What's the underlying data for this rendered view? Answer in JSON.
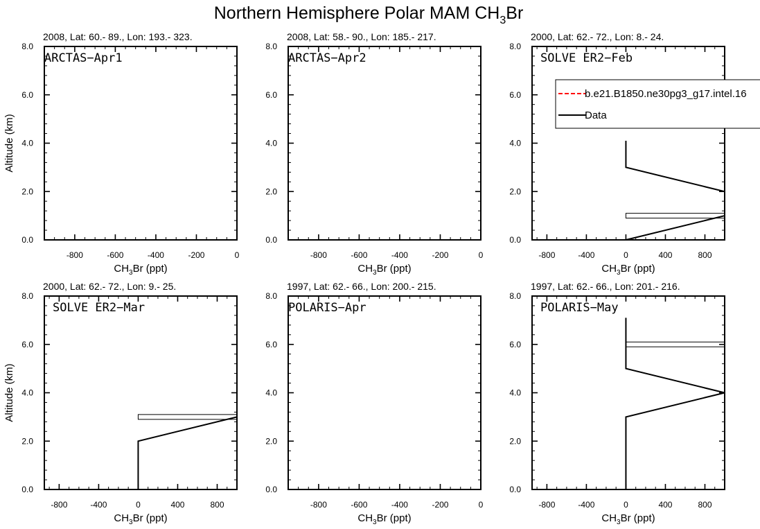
{
  "figure": {
    "title_main": "Northern Hemisphere Polar MAM CH",
    "title_sub": "3",
    "title_tail": "Br"
  },
  "legend": {
    "entries": [
      {
        "label": "b.e21.B1850.ne30pg3_g17.intel.16",
        "style": "dashed",
        "color": "#ff0000"
      },
      {
        "label": "Data",
        "style": "solid",
        "color": "#000000"
      }
    ]
  },
  "chart_data": [
    {
      "type": "line",
      "subtitle": "2008, Lat:  60.- 89., Lon: 193.- 323.",
      "label": "ARCTAS−Apr1",
      "xlabel_pre": "CH",
      "xlabel_sub": "3",
      "xlabel_post": "Br (ppt)",
      "ylabel": "Altitude (km)",
      "xlim": [
        -950,
        0
      ],
      "ylim": [
        0,
        8
      ],
      "xticks": [
        -800,
        -600,
        -400,
        -200,
        0
      ],
      "xticklabels": [
        "-800",
        "-600",
        "-400",
        "-200",
        "0"
      ],
      "yticks": [
        0,
        2,
        4,
        6,
        8
      ],
      "yticklabels": [
        "0.0",
        "2.0",
        "4.0",
        "6.0",
        "8.0"
      ],
      "series": [],
      "boxes": []
    },
    {
      "type": "line",
      "subtitle": "2008, Lat:  58.- 90., Lon: 185.- 217.",
      "label": "ARCTAS−Apr2",
      "xlabel_pre": "CH",
      "xlabel_sub": "3",
      "xlabel_post": "Br (ppt)",
      "ylabel": "",
      "xlim": [
        -950,
        0
      ],
      "ylim": [
        0,
        8
      ],
      "xticks": [
        -800,
        -600,
        -400,
        -200,
        0
      ],
      "xticklabels": [
        "-800",
        "-600",
        "-400",
        "-200",
        "0"
      ],
      "yticks": [
        0,
        2,
        4,
        6,
        8
      ],
      "yticklabels": [
        "0.0",
        "2.0",
        "4.0",
        "6.0",
        "8.0"
      ],
      "series": [],
      "boxes": []
    },
    {
      "type": "line",
      "subtitle": "2000, Lat: 62.- 72., Lon: 8.- 24.",
      "label": "SOLVE ER2−Feb",
      "xlabel_pre": "CH",
      "xlabel_sub": "3",
      "xlabel_post": "Br (ppt)",
      "ylabel": "",
      "xlim": [
        -950,
        1000
      ],
      "ylim": [
        0,
        8
      ],
      "xticks": [
        -800,
        -400,
        0,
        400,
        800
      ],
      "xticklabels": [
        "-800",
        "-400",
        "0",
        "400",
        "800"
      ],
      "yticks": [
        0,
        2,
        4,
        6,
        8
      ],
      "yticklabels": [
        "0.0",
        "2.0",
        "4.0",
        "6.0",
        "8.0"
      ],
      "series": [
        {
          "name": "Data",
          "x": [
            0,
            1000,
            1000,
            0,
            0
          ],
          "y": [
            0,
            1,
            2,
            3,
            4.1
          ]
        }
      ],
      "boxes": [
        {
          "x0": 0,
          "x1": 1000,
          "y0": 0.9,
          "y1": 1.1
        }
      ]
    },
    {
      "type": "line",
      "subtitle": "2000, Lat: 62.- 72., Lon: 9.- 25.",
      "label": "SOLVE ER2−Mar",
      "xlabel_pre": "CH",
      "xlabel_sub": "3",
      "xlabel_post": "Br (ppt)",
      "ylabel": "Altitude (km)",
      "xlim": [
        -950,
        1000
      ],
      "ylim": [
        0,
        8
      ],
      "xticks": [
        -800,
        -400,
        0,
        400,
        800
      ],
      "xticklabels": [
        "-800",
        "-400",
        "0",
        "400",
        "800"
      ],
      "yticks": [
        0,
        2,
        4,
        6,
        8
      ],
      "yticklabels": [
        "0.0",
        "2.0",
        "4.0",
        "6.0",
        "8.0"
      ],
      "series": [
        {
          "name": "Data",
          "x": [
            0,
            0,
            0,
            1000
          ],
          "y": [
            0,
            1,
            2,
            3
          ]
        }
      ],
      "boxes": [
        {
          "x0": 0,
          "x1": 1000,
          "y0": 2.9,
          "y1": 3.1
        }
      ]
    },
    {
      "type": "line",
      "subtitle": "1997, Lat: 62.- 66., Lon: 200.- 215.",
      "label": "POLARIS−Apr",
      "xlabel_pre": "CH",
      "xlabel_sub": "3",
      "xlabel_post": "Br (ppt)",
      "ylabel": "",
      "xlim": [
        -950,
        0
      ],
      "ylim": [
        0,
        8
      ],
      "xticks": [
        -800,
        -600,
        -400,
        -200,
        0
      ],
      "xticklabels": [
        "-800",
        "-600",
        "-400",
        "-200",
        "0"
      ],
      "yticks": [
        0,
        2,
        4,
        6,
        8
      ],
      "yticklabels": [
        "0.0",
        "2.0",
        "4.0",
        "6.0",
        "8.0"
      ],
      "series": [],
      "boxes": []
    },
    {
      "type": "line",
      "subtitle": "1997, Lat: 62.- 66., Lon: 201.- 216.",
      "label": "POLARIS−May",
      "xlabel_pre": "CH",
      "xlabel_sub": "3",
      "xlabel_post": "Br (ppt)",
      "ylabel": "",
      "xlim": [
        -950,
        1000
      ],
      "ylim": [
        0,
        8
      ],
      "xticks": [
        -800,
        -400,
        0,
        400,
        800
      ],
      "xticklabels": [
        "-800",
        "-400",
        "0",
        "400",
        "800"
      ],
      "yticks": [
        0,
        2,
        4,
        6,
        8
      ],
      "yticklabels": [
        "0.0",
        "2.0",
        "4.0",
        "6.0",
        "8.0"
      ],
      "series": [
        {
          "name": "Data",
          "x": [
            0,
            0,
            0,
            1000,
            0,
            0,
            0
          ],
          "y": [
            0,
            1,
            3,
            4,
            5,
            6,
            7.1
          ]
        }
      ],
      "boxes": [
        {
          "x0": 0,
          "x1": 1000,
          "y0": 5.9,
          "y1": 6.1
        }
      ]
    }
  ]
}
